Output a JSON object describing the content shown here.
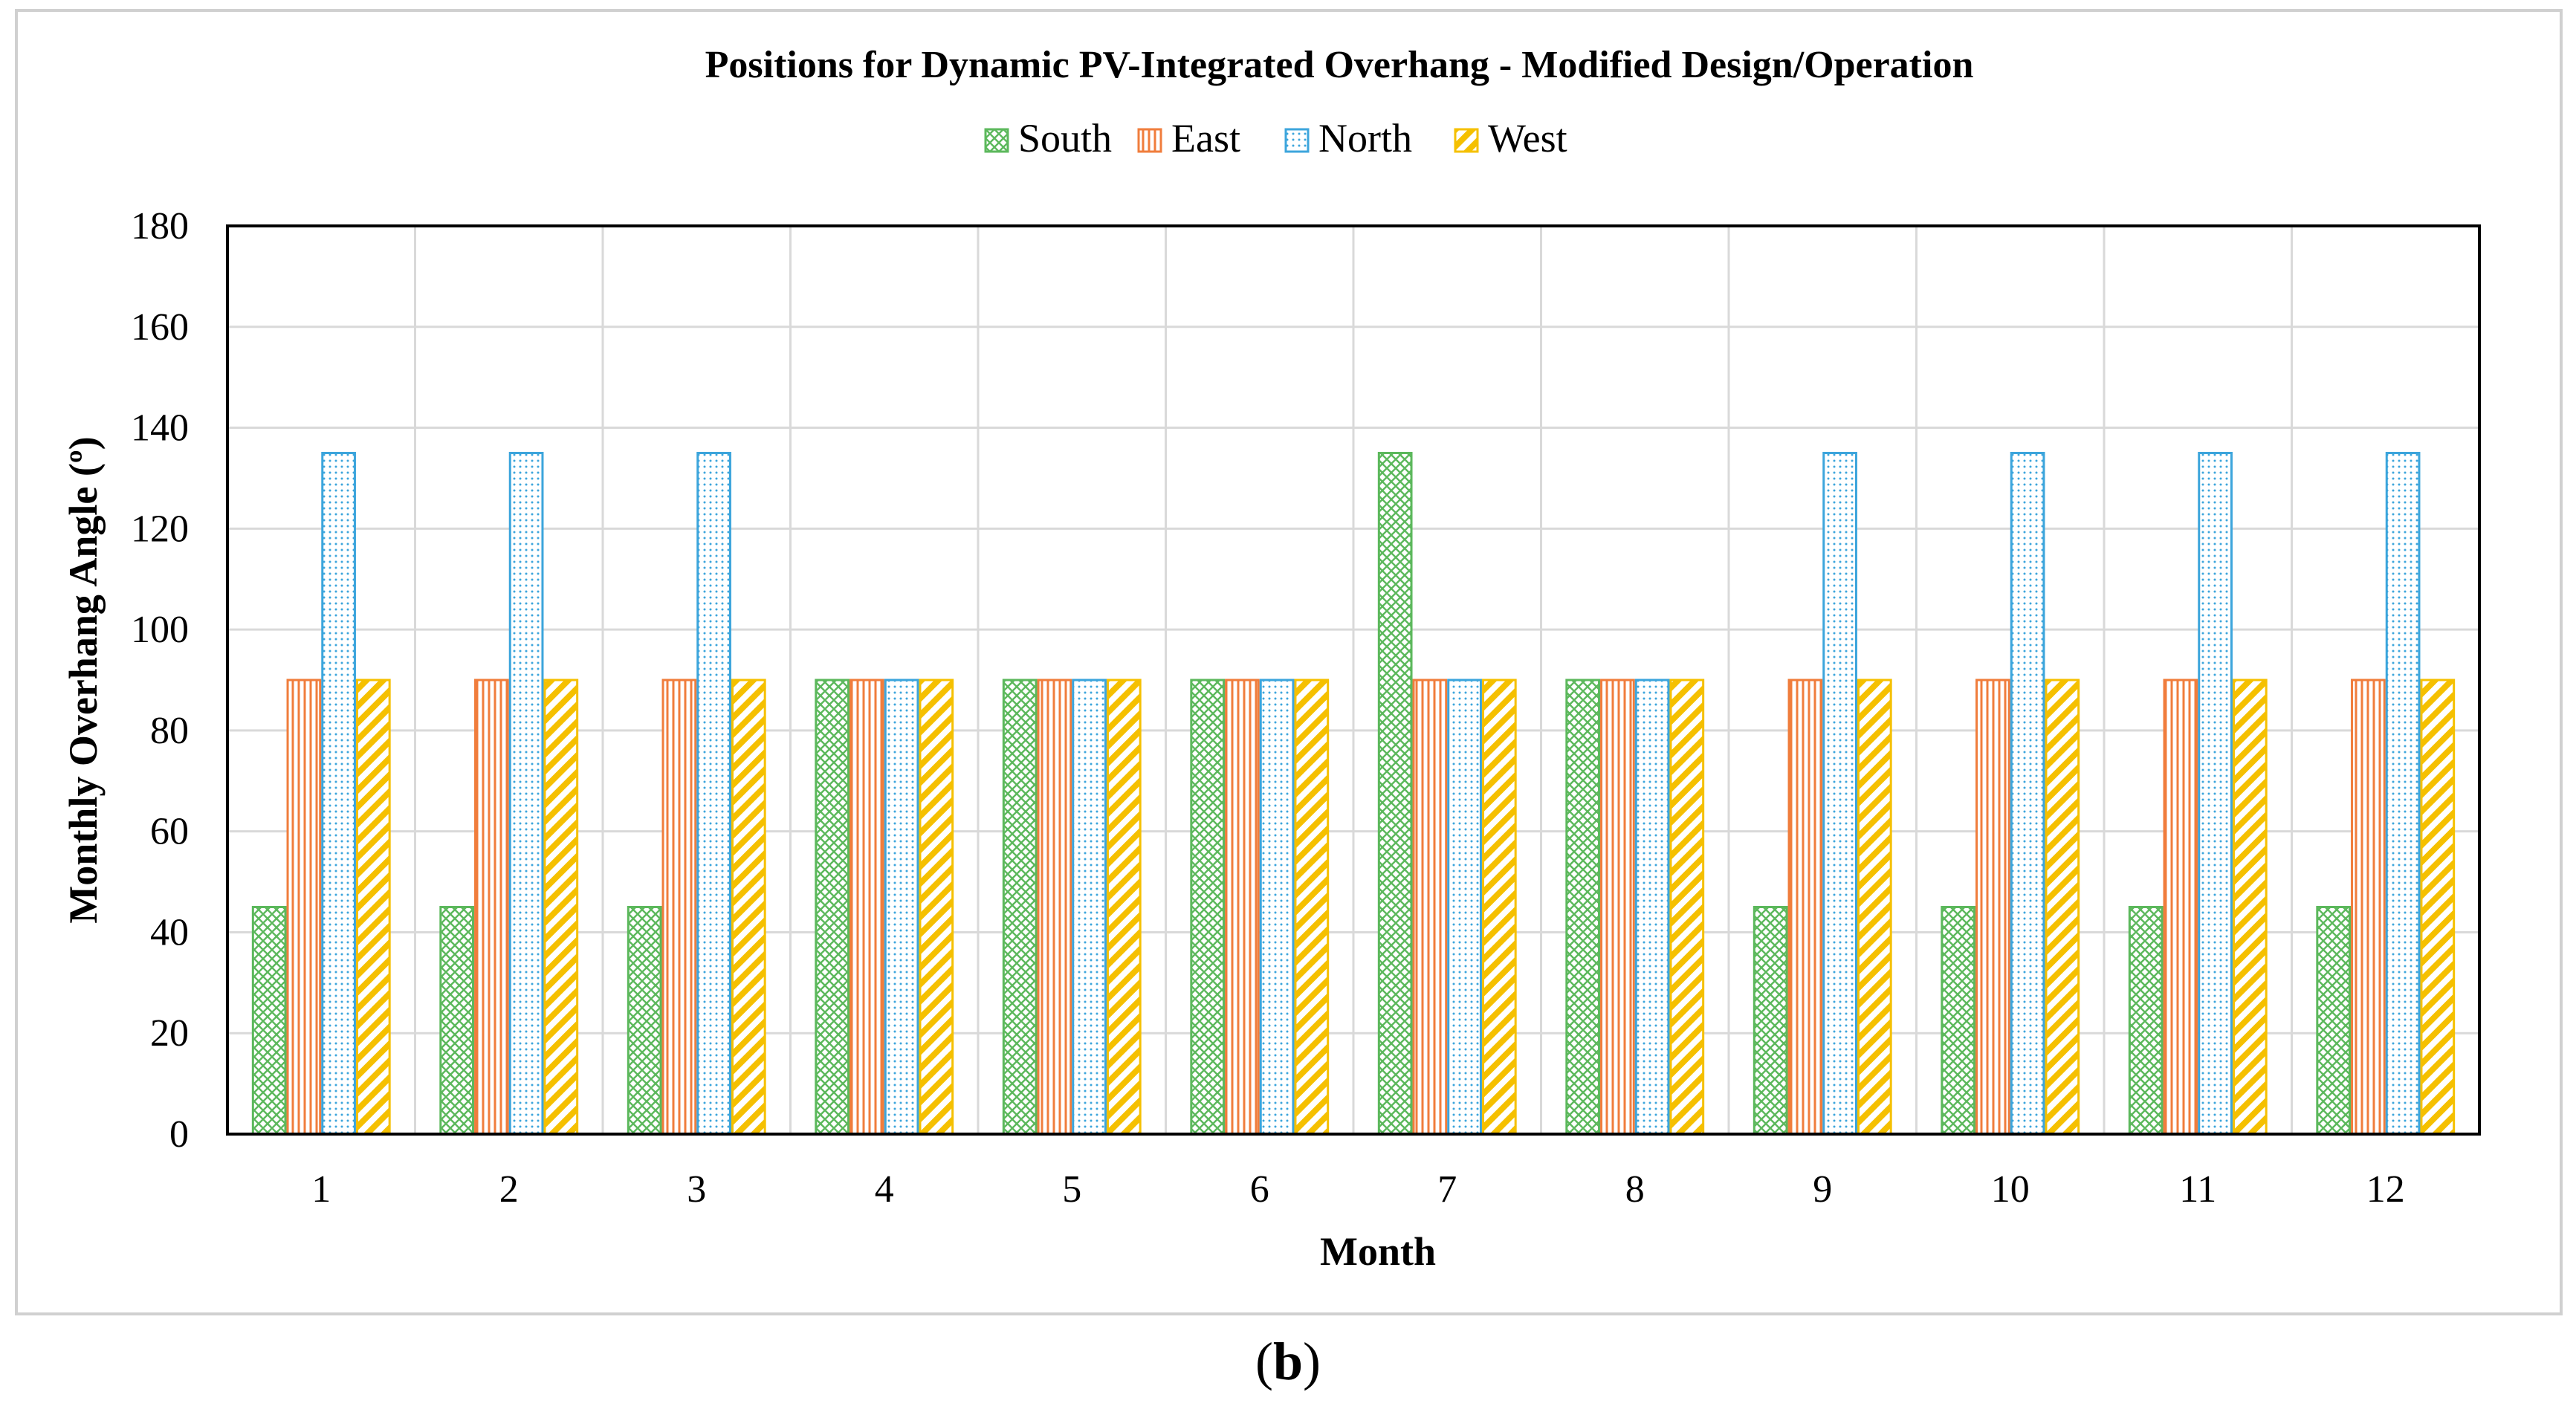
{
  "chart_data": {
    "type": "bar",
    "title": "Positions for Dynamic PV-Integrated Overhang - Modified Design/Operation",
    "xlabel": "Month",
    "ylabel": "Monthly Overhang Angle (º)",
    "ylim": [
      0,
      180
    ],
    "yticks": [
      0,
      20,
      40,
      60,
      80,
      100,
      120,
      140,
      160,
      180
    ],
    "grid": true,
    "legend_position": "top-center",
    "categories": [
      "1",
      "2",
      "3",
      "4",
      "5",
      "6",
      "7",
      "8",
      "9",
      "10",
      "11",
      "12"
    ],
    "series": [
      {
        "name": "South",
        "color": "#5cb85c",
        "pattern": "crosshatch",
        "values": [
          45,
          45,
          45,
          90,
          90,
          90,
          135,
          90,
          45,
          45,
          45,
          45
        ]
      },
      {
        "name": "East",
        "color": "#f07d3c",
        "pattern": "vertical-lines",
        "values": [
          90,
          90,
          90,
          90,
          90,
          90,
          90,
          90,
          90,
          90,
          90,
          90
        ]
      },
      {
        "name": "North",
        "color": "#3ca5dc",
        "pattern": "dots",
        "values": [
          135,
          135,
          135,
          90,
          90,
          90,
          90,
          90,
          135,
          135,
          135,
          135
        ]
      },
      {
        "name": "West",
        "color": "#f5c000",
        "pattern": "diagonal-stripes",
        "values": [
          90,
          90,
          90,
          90,
          90,
          90,
          90,
          90,
          90,
          90,
          90,
          90
        ]
      }
    ]
  },
  "caption": {
    "open": "(",
    "letter": "b",
    "close": ")"
  }
}
